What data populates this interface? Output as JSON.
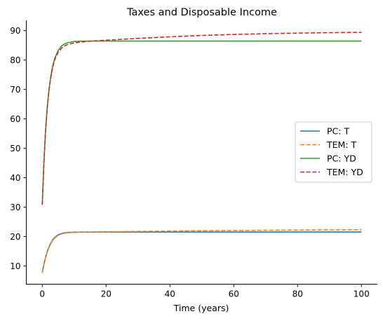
{
  "chart_data": {
    "type": "line",
    "title": "Taxes and Disposable Income",
    "xlabel": "Time (years)",
    "ylabel": "",
    "xlim": [
      -5,
      105
    ],
    "ylim": [
      3.8,
      93.5
    ],
    "xticks": [
      0,
      20,
      40,
      60,
      80,
      100
    ],
    "yticks": [
      10,
      20,
      30,
      40,
      50,
      60,
      70,
      80,
      90
    ],
    "grid": false,
    "legend_position": "center-right",
    "series": [
      {
        "name": "PC: T",
        "color": "#1f77b4",
        "dash": "solid",
        "x": [
          0,
          0.5,
          1,
          1.5,
          2,
          2.5,
          3,
          3.5,
          4,
          5,
          6,
          7,
          8,
          10,
          12,
          15,
          20,
          30,
          40,
          60,
          80,
          100
        ],
        "y": [
          7.7,
          10.5,
          12.8,
          14.7,
          16.2,
          17.4,
          18.4,
          19.2,
          19.8,
          20.6,
          21.0,
          21.25,
          21.38,
          21.48,
          21.5,
          21.52,
          21.53,
          21.53,
          21.53,
          21.53,
          21.53,
          21.53
        ]
      },
      {
        "name": "TEM: T",
        "color": "#ff7f0e",
        "dash": "dashed",
        "x": [
          0,
          0.5,
          1,
          1.5,
          2,
          2.5,
          3,
          3.5,
          4,
          5,
          6,
          7,
          8,
          10,
          12,
          15,
          20,
          30,
          40,
          50,
          60,
          70,
          80,
          90,
          100
        ],
        "y": [
          7.7,
          10.4,
          12.7,
          14.5,
          16.0,
          17.2,
          18.2,
          19.0,
          19.6,
          20.4,
          20.9,
          21.15,
          21.3,
          21.42,
          21.48,
          21.52,
          21.6,
          21.75,
          21.88,
          21.98,
          22.06,
          22.13,
          22.2,
          22.25,
          22.3
        ]
      },
      {
        "name": "PC: YD",
        "color": "#2ca02c",
        "dash": "solid",
        "x": [
          0,
          0.5,
          1,
          1.5,
          2,
          2.5,
          3,
          3.5,
          4,
          5,
          6,
          7,
          8,
          10,
          12,
          15,
          20,
          30,
          40,
          60,
          80,
          100
        ],
        "y": [
          30.8,
          45.0,
          55.5,
          63.2,
          69.0,
          73.3,
          76.6,
          79.0,
          80.8,
          83.3,
          84.7,
          85.5,
          85.9,
          86.3,
          86.4,
          86.45,
          86.45,
          86.45,
          86.45,
          86.45,
          86.45,
          86.45
        ]
      },
      {
        "name": "TEM: YD",
        "color": "#d62728",
        "dash": "dashed",
        "x": [
          0,
          0.5,
          1,
          1.5,
          2,
          2.5,
          3,
          3.5,
          4,
          5,
          6,
          7,
          8,
          10,
          12,
          15,
          20,
          25,
          30,
          40,
          50,
          60,
          70,
          80,
          90,
          100
        ],
        "y": [
          30.8,
          44.5,
          55.0,
          62.8,
          68.5,
          72.8,
          76.0,
          78.5,
          80.3,
          82.7,
          84.0,
          84.8,
          85.3,
          85.8,
          86.1,
          86.4,
          86.75,
          87.05,
          87.35,
          87.9,
          88.35,
          88.7,
          88.95,
          89.15,
          89.3,
          89.4
        ]
      }
    ]
  }
}
